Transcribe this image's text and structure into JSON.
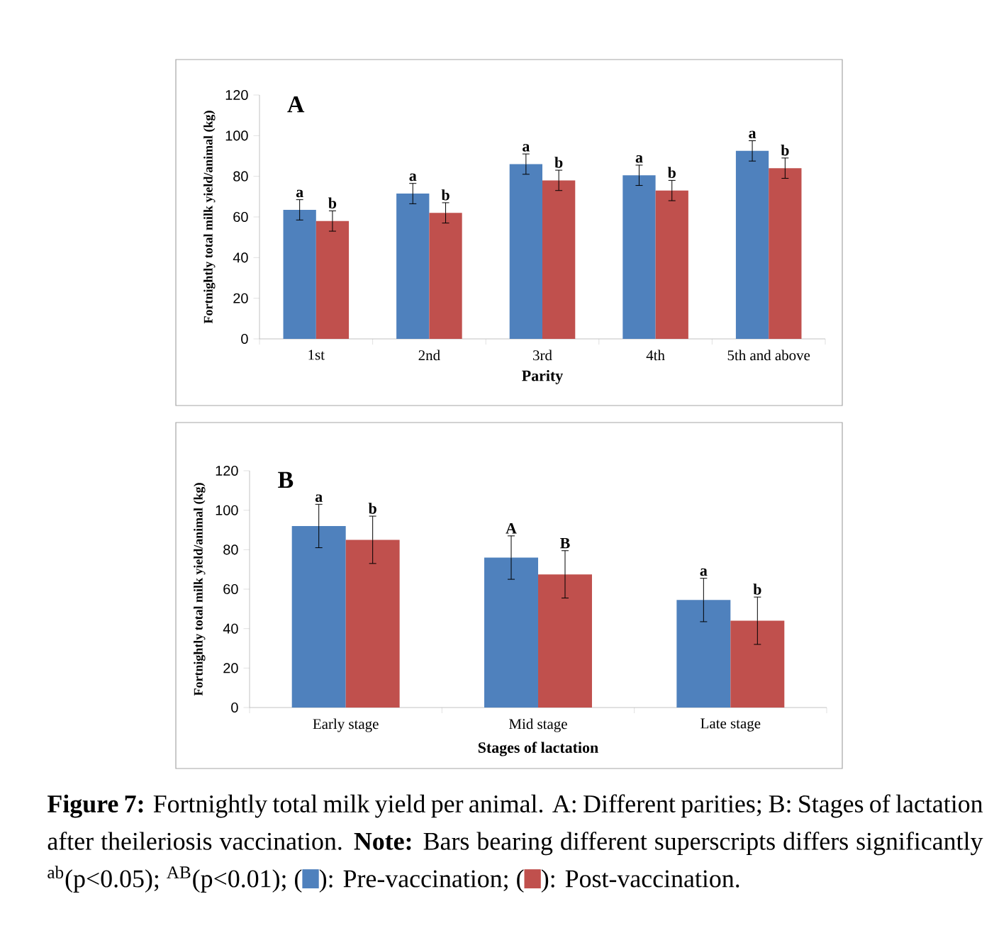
{
  "chart_data": [
    {
      "type": "bar",
      "title": "A",
      "xlabel": "Parity",
      "ylabel": "Fortnightly total milk yield/animal  (kg)",
      "categories": [
        "1st",
        "2nd",
        "3rd",
        "4th",
        "5th and above"
      ],
      "ylim": [
        0,
        120
      ],
      "yticks": [
        0,
        20,
        40,
        60,
        80,
        100,
        120
      ],
      "grid": false,
      "series": [
        {
          "color": "#4f81bd",
          "values": [
            63.5,
            71.5,
            86,
            80.5,
            92.5
          ],
          "errors": [
            5,
            5,
            5,
            5,
            5
          ],
          "value_labels": [
            "a",
            "a",
            "a",
            "a",
            "a"
          ]
        },
        {
          "color": "#c0504d",
          "values": [
            58,
            62,
            78,
            73,
            84
          ],
          "errors": [
            5,
            5,
            5,
            5,
            5
          ],
          "value_labels": [
            "b",
            "b",
            "b",
            "b",
            "b"
          ]
        }
      ]
    },
    {
      "type": "bar",
      "title": "B",
      "xlabel": "Stages of lactation",
      "ylabel": "Fortnightly total milk yield/animal  (kg)",
      "categories": [
        "Early stage",
        "Mid stage",
        "Late stage"
      ],
      "ylim": [
        0,
        120
      ],
      "yticks": [
        0,
        20,
        40,
        60,
        80,
        100,
        120
      ],
      "grid": false,
      "series": [
        {
          "color": "#4f81bd",
          "values": [
            92,
            76,
            54.5
          ],
          "errors": [
            11,
            11,
            11
          ],
          "value_labels": [
            "a",
            "A",
            "a"
          ]
        },
        {
          "color": "#c0504d",
          "values": [
            85,
            67.5,
            44
          ],
          "errors": [
            12,
            12,
            12
          ],
          "value_labels": [
            "b",
            "B",
            "b"
          ]
        }
      ],
      "annotations": [
        "**Figure 7:** Fortnightly total milk yield per animal. A: Different parities; B: Stages of lactation after theileriosis vaccination. **Note:** Bars bearing different superscripts differs significantly $^{ab}$(p<0.05); $^{AB}$(p<0.01);",
        "(",
        "): Pre-vaccination; (",
        "): Post-vaccination."
      ]
    }
  ]
}
